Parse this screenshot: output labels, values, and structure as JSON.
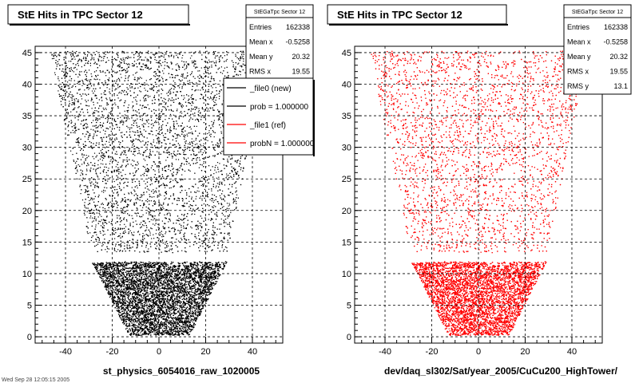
{
  "chart_data": [
    {
      "type": "scatter",
      "title": "StE Hits in TPC Sector 12",
      "xlabel": "st_physics_6054016_raw_1020005",
      "ylabel": "",
      "xlim": [
        -53,
        53
      ],
      "ylim": [
        -1,
        46
      ],
      "xticks": [
        -40,
        -20,
        0,
        20,
        40
      ],
      "yticks": [
        0,
        5,
        10,
        15,
        20,
        25,
        30,
        35,
        40,
        45
      ],
      "grid": true,
      "color": "#000000",
      "stats": {
        "title": "StEGaTpc Sector 12",
        "rows": [
          {
            "label": "Entries",
            "value": "162338"
          },
          {
            "label": "Mean x",
            "value": "-0.5258"
          },
          {
            "label": "Mean y",
            "value": "20.32"
          },
          {
            "label": "RMS x",
            "value": "19.55"
          }
        ]
      },
      "legend": {
        "placement": "top-right",
        "entries": [
          {
            "label": "_file0 (new)",
            "color": "#000000"
          },
          {
            "label": "prob = 1.000000",
            "color": "#000000"
          },
          {
            "label": "_file1 (ref)",
            "color": "#ff0000"
          },
          {
            "label": "probN = 1.000000",
            "color": "#ff0000"
          }
        ]
      }
    },
    {
      "type": "scatter",
      "title": "StE Hits in TPC Sector 12",
      "xlabel": "dev/daq_sl302/Sat/year_2005/CuCu200_HighTower/",
      "ylabel": "",
      "xlim": [
        -53,
        53
      ],
      "ylim": [
        -1,
        46
      ],
      "xticks": [
        -40,
        -20,
        0,
        20,
        40
      ],
      "yticks": [
        0,
        5,
        10,
        15,
        20,
        25,
        30,
        35,
        40,
        45
      ],
      "grid": true,
      "color": "#ff0000",
      "stats": {
        "title": "StEGaTpc Sector 12",
        "rows": [
          {
            "label": "Entries",
            "value": "162338"
          },
          {
            "label": "Mean x",
            "value": "-0.5258"
          },
          {
            "label": "Mean y",
            "value": "20.32"
          },
          {
            "label": "RMS x",
            "value": "19.55"
          },
          {
            "label": "RMS y",
            "value": "13.1"
          }
        ]
      }
    }
  ],
  "footer_text": "Wed Sep 28 12:05:15 2005"
}
